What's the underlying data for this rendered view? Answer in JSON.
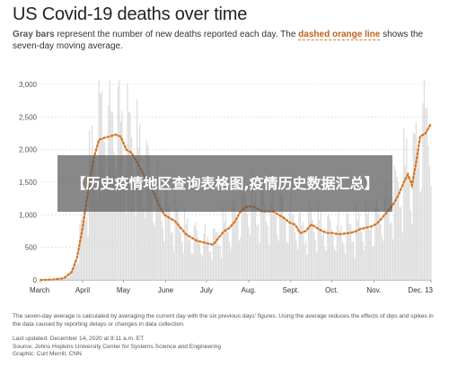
{
  "header": {
    "title": "US Covid-19 deaths over time",
    "subtitle_gray": "Gray bars",
    "subtitle_mid": " represent the number of new deaths reported each day. The ",
    "subtitle_orange": "dashed orange line",
    "subtitle_end": " shows the seven-day moving average."
  },
  "overlay": {
    "text": "【历史疫情地区查询表格图,疫情历史数据汇总】"
  },
  "footer": {
    "note": "The seven-day average is calculated by averaging the current day with the six previous days' figures. Using the average reduces the effects of dips and spikes in the data caused by reporting delays or changes in data collection.",
    "updated": "Last updated: December 14, 2020 at 9:11 a.m. ET",
    "source": "Source: Johns Hopkins University Center for Systems Science and Engineering",
    "graphic": "Graphic: Curt Merrill, CNN"
  },
  "colors": {
    "bars": "#dcdcdc",
    "line": "#d7731f",
    "grid": "#d0d0d0"
  },
  "chart_data": {
    "type": "bar",
    "title": "US Covid-19 deaths over time",
    "xlabel": "",
    "ylabel": "",
    "ylim": [
      0,
      3000
    ],
    "yticks": [
      "3,000",
      "2,500",
      "2,000",
      "1,500",
      "1,000",
      "500",
      "0"
    ],
    "ytick_values": [
      3000,
      2500,
      2000,
      1500,
      1000,
      500,
      0
    ],
    "xticks": [
      "March",
      "April",
      "May",
      "June",
      "July",
      "Aug.",
      "Sept.",
      "Oct.",
      "Nov.",
      "Dec. 13"
    ],
    "xtick_days": [
      0,
      31,
      61,
      92,
      122,
      153,
      184,
      214,
      245,
      287
    ],
    "grid": true,
    "series": [
      {
        "name": "Gray bars",
        "kind": "bar",
        "description": "new deaths reported each day (approximated from gridlines)"
      },
      {
        "name": "dashed orange line",
        "kind": "line",
        "description": "seven-day moving average",
        "points": [
          {
            "x": "Mar 1",
            "y": 0
          },
          {
            "x": "Mar 10",
            "y": 5
          },
          {
            "x": "Mar 18",
            "y": 25
          },
          {
            "x": "Mar 24",
            "y": 120
          },
          {
            "x": "Mar 28",
            "y": 350
          },
          {
            "x": "Apr 1",
            "y": 800
          },
          {
            "x": "Apr 5",
            "y": 1350
          },
          {
            "x": "Apr 9",
            "y": 1850
          },
          {
            "x": "Apr 13",
            "y": 2150
          },
          {
            "x": "Apr 17",
            "y": 2180
          },
          {
            "x": "Apr 21",
            "y": 2200
          },
          {
            "x": "Apr 25",
            "y": 2230
          },
          {
            "x": "Apr 29",
            "y": 2200
          },
          {
            "x": "May 3",
            "y": 2000
          },
          {
            "x": "May 7",
            "y": 1950
          },
          {
            "x": "May 11",
            "y": 1800
          },
          {
            "x": "May 15",
            "y": 1650
          },
          {
            "x": "May 19",
            "y": 1500
          },
          {
            "x": "May 23",
            "y": 1350
          },
          {
            "x": "May 27",
            "y": 1150
          },
          {
            "x": "May 31",
            "y": 1000
          },
          {
            "x": "Jun 4",
            "y": 950
          },
          {
            "x": "Jun 8",
            "y": 900
          },
          {
            "x": "Jun 12",
            "y": 800
          },
          {
            "x": "Jun 16",
            "y": 700
          },
          {
            "x": "Jun 20",
            "y": 650
          },
          {
            "x": "Jun 24",
            "y": 600
          },
          {
            "x": "Jun 28",
            "y": 580
          },
          {
            "x": "Jul 2",
            "y": 560
          },
          {
            "x": "Jul 6",
            "y": 540
          },
          {
            "x": "Jul 10",
            "y": 650
          },
          {
            "x": "Jul 14",
            "y": 750
          },
          {
            "x": "Jul 18",
            "y": 800
          },
          {
            "x": "Jul 22",
            "y": 900
          },
          {
            "x": "Jul 26",
            "y": 1050
          },
          {
            "x": "Jul 30",
            "y": 1120
          },
          {
            "x": "Aug 3",
            "y": 1130
          },
          {
            "x": "Aug 7",
            "y": 1100
          },
          {
            "x": "Aug 11",
            "y": 1050
          },
          {
            "x": "Aug 15",
            "y": 1050
          },
          {
            "x": "Aug 19",
            "y": 1050
          },
          {
            "x": "Aug 23",
            "y": 1000
          },
          {
            "x": "Aug 27",
            "y": 950
          },
          {
            "x": "Aug 31",
            "y": 880
          },
          {
            "x": "Sep 4",
            "y": 850
          },
          {
            "x": "Sep 8",
            "y": 720
          },
          {
            "x": "Sep 12",
            "y": 750
          },
          {
            "x": "Sep 16",
            "y": 850
          },
          {
            "x": "Sep 20",
            "y": 800
          },
          {
            "x": "Sep 24",
            "y": 750
          },
          {
            "x": "Sep 28",
            "y": 720
          },
          {
            "x": "Oct 2",
            "y": 720
          },
          {
            "x": "Oct 6",
            "y": 700
          },
          {
            "x": "Oct 10",
            "y": 710
          },
          {
            "x": "Oct 14",
            "y": 720
          },
          {
            "x": "Oct 18",
            "y": 740
          },
          {
            "x": "Oct 22",
            "y": 780
          },
          {
            "x": "Oct 26",
            "y": 800
          },
          {
            "x": "Oct 30",
            "y": 820
          },
          {
            "x": "Nov 3",
            "y": 860
          },
          {
            "x": "Nov 7",
            "y": 950
          },
          {
            "x": "Nov 11",
            "y": 1050
          },
          {
            "x": "Nov 15",
            "y": 1150
          },
          {
            "x": "Nov 19",
            "y": 1300
          },
          {
            "x": "Nov 23",
            "y": 1500
          },
          {
            "x": "Nov 26",
            "y": 1620
          },
          {
            "x": "Nov 29",
            "y": 1450
          },
          {
            "x": "Dec 2",
            "y": 1800
          },
          {
            "x": "Dec 5",
            "y": 2200
          },
          {
            "x": "Dec 9",
            "y": 2250
          },
          {
            "x": "Dec 13",
            "y": 2400
          }
        ]
      }
    ]
  }
}
